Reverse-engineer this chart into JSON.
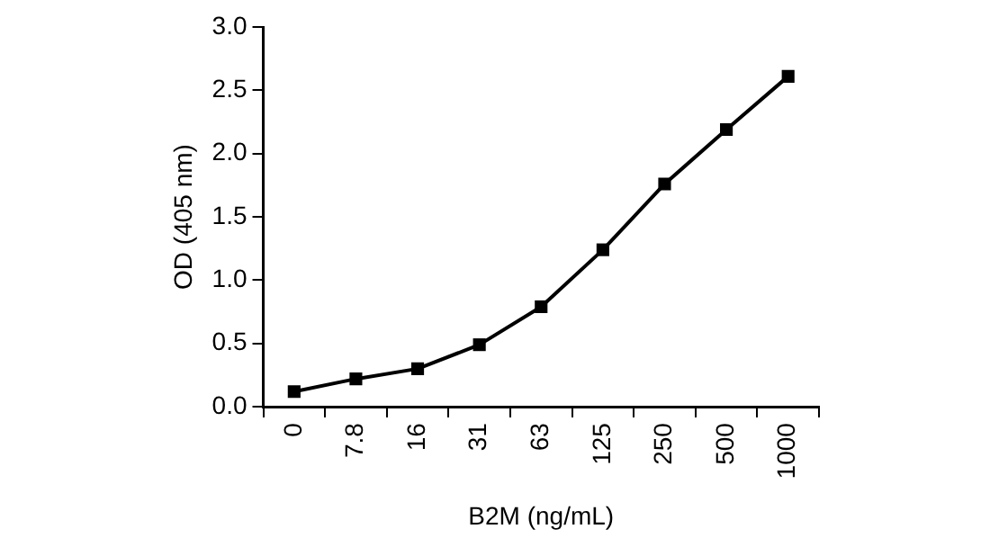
{
  "chart_data": {
    "type": "line",
    "xlabel": "B2M (ng/mL)",
    "ylabel": "OD (405 nm)",
    "categories": [
      "0",
      "7.8",
      "16",
      "31",
      "63",
      "125",
      "250",
      "500",
      "1000"
    ],
    "series": [
      {
        "color": "#000000",
        "values": [
          0.12,
          0.22,
          0.3,
          0.49,
          0.79,
          1.24,
          1.76,
          2.19,
          2.61
        ]
      }
    ],
    "ylim": [
      0,
      3
    ],
    "yticks": [
      {
        "value": 0,
        "label": "0.0"
      },
      {
        "value": 0.5,
        "label": "0.5"
      },
      {
        "value": 1,
        "label": "1.0"
      },
      {
        "value": 1.5,
        "label": "1.5"
      },
      {
        "value": 2,
        "label": "2.0"
      },
      {
        "value": 2.5,
        "label": "2.5"
      },
      {
        "value": 3,
        "label": "3.0"
      }
    ],
    "grid": false,
    "legend": false,
    "marker": "square",
    "line_style": "solid"
  }
}
